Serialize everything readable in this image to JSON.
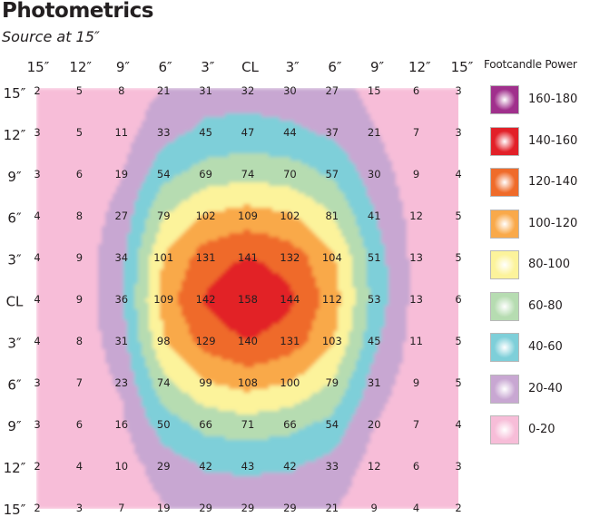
{
  "title": "Photometrics",
  "subtitle": "Source at 15″",
  "chart_data": {
    "type": "heatmap",
    "x_labels": [
      "15″",
      "12″",
      "9″",
      "6″",
      "3″",
      "CL",
      "3″",
      "6″",
      "9″",
      "12″",
      "15″"
    ],
    "y_labels": [
      "15″",
      "12″",
      "9″",
      "6″",
      "3″",
      "CL",
      "3″",
      "6″",
      "9″",
      "12″",
      "15″"
    ],
    "values": [
      [
        2,
        5,
        8,
        21,
        31,
        32,
        30,
        27,
        15,
        6,
        3
      ],
      [
        3,
        5,
        11,
        33,
        45,
        47,
        44,
        37,
        21,
        7,
        3
      ],
      [
        3,
        6,
        19,
        54,
        69,
        74,
        70,
        57,
        30,
        9,
        4
      ],
      [
        4,
        8,
        27,
        79,
        102,
        109,
        102,
        81,
        41,
        12,
        5
      ],
      [
        4,
        9,
        34,
        101,
        131,
        141,
        132,
        104,
        51,
        13,
        5
      ],
      [
        4,
        9,
        36,
        109,
        142,
        158,
        144,
        112,
        53,
        13,
        6
      ],
      [
        4,
        8,
        31,
        98,
        129,
        140,
        131,
        103,
        45,
        11,
        5
      ],
      [
        3,
        7,
        23,
        74,
        99,
        108,
        100,
        79,
        31,
        9,
        5
      ],
      [
        3,
        6,
        16,
        50,
        66,
        71,
        66,
        54,
        20,
        7,
        4
      ],
      [
        2,
        4,
        10,
        29,
        42,
        43,
        42,
        33,
        12,
        6,
        3
      ],
      [
        2,
        3,
        7,
        19,
        29,
        29,
        29,
        21,
        9,
        4,
        2
      ]
    ],
    "legend": {
      "title": "Footcandle Power",
      "bins": [
        {
          "label": "160-180",
          "min": 160,
          "max": 180,
          "color": "#a0308c"
        },
        {
          "label": "140-160",
          "min": 140,
          "max": 160,
          "color": "#e22028"
        },
        {
          "label": "120-140",
          "min": 120,
          "max": 140,
          "color": "#ef6b2a"
        },
        {
          "label": "100-120",
          "min": 100,
          "max": 120,
          "color": "#f9a94a"
        },
        {
          "label": "80-100",
          "min": 80,
          "max": 100,
          "color": "#fcf39b"
        },
        {
          "label": "60-80",
          "min": 60,
          "max": 80,
          "color": "#b6dcb1"
        },
        {
          "label": "40-60",
          "min": 40,
          "max": 60,
          "color": "#7ecfd9"
        },
        {
          "label": "20-40",
          "min": 20,
          "max": 40,
          "color": "#c8a7d2"
        },
        {
          "label": "0-20",
          "min": 0,
          "max": 20,
          "color": "#f7bdd8"
        }
      ]
    }
  }
}
